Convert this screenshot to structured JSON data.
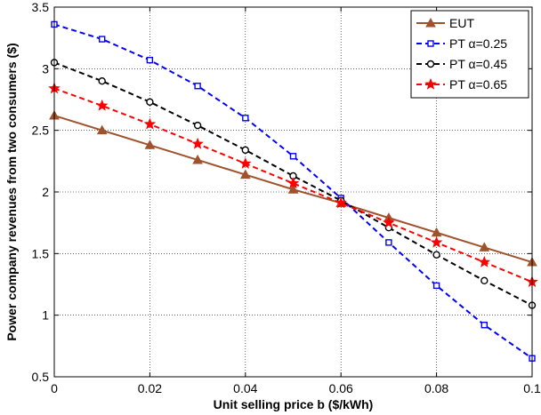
{
  "chart_data": {
    "type": "line",
    "xlabel": "Unit selling price b ($/kWh)",
    "ylabel": "Power company revenues from two consumers ($)",
    "xlim": [
      0,
      0.1
    ],
    "ylim": [
      0.5,
      3.5
    ],
    "xticks": [
      "0",
      "0.02",
      "0.04",
      "0.06",
      "0.08",
      "0.1"
    ],
    "xtick_values": [
      0,
      0.02,
      0.04,
      0.06,
      0.08,
      0.1
    ],
    "yticks": [
      "0.5",
      "1",
      "1.5",
      "2",
      "2.5",
      "3",
      "3.5"
    ],
    "ytick_values": [
      0.5,
      1,
      1.5,
      2,
      2.5,
      3,
      3.5
    ],
    "grid": true,
    "legend_position": "top-right",
    "x": [
      0,
      0.01,
      0.02,
      0.03,
      0.04,
      0.05,
      0.06,
      0.07,
      0.08,
      0.09,
      0.1
    ],
    "series": [
      {
        "name": "EUT",
        "color": "#A0522D",
        "line": "solid",
        "marker": "triangle",
        "values": [
          2.62,
          2.5,
          2.38,
          2.26,
          2.14,
          2.02,
          1.91,
          1.79,
          1.67,
          1.55,
          1.43
        ]
      },
      {
        "name": "PT α=0.25",
        "color": "#0000FF",
        "line": "dashed",
        "marker": "square",
        "values": [
          3.36,
          3.24,
          3.07,
          2.86,
          2.6,
          2.29,
          1.95,
          1.59,
          1.24,
          0.92,
          0.65
        ]
      },
      {
        "name": "PT α=0.45",
        "color": "#000000",
        "line": "dashed",
        "marker": "circle",
        "values": [
          3.05,
          2.9,
          2.73,
          2.54,
          2.34,
          2.13,
          1.93,
          1.71,
          1.49,
          1.28,
          1.08
        ]
      },
      {
        "name": "PT α=0.65",
        "color": "#FF0000",
        "line": "dashed",
        "marker": "star",
        "values": [
          2.84,
          2.7,
          2.55,
          2.39,
          2.23,
          2.07,
          1.91,
          1.75,
          1.59,
          1.43,
          1.27
        ]
      }
    ]
  }
}
